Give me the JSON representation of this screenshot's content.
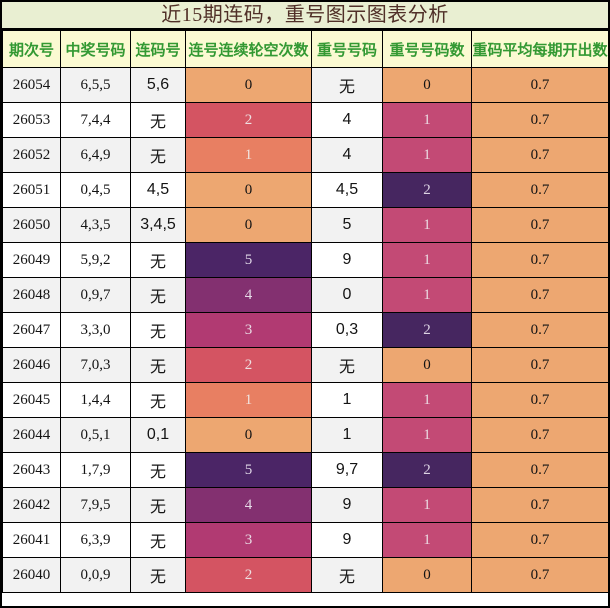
{
  "title": "近15期连码，重号图示图表分析",
  "colors": {
    "frame_border": "#000000",
    "title_bg": "#e9efd2",
    "title_text": "#503028",
    "header_bg": "#fbfad2",
    "header_text": "#339933",
    "row_alt_bg": "#f2f2f2",
    "row_bg": "#ffffff"
  },
  "chart_data": {
    "type": "table",
    "title": "近15期连码，重号图示图表分析",
    "columns": [
      "期次号",
      "中奖号码",
      "连码号",
      "连号连续轮空次数",
      "重号号码",
      "重号号码数",
      "重码平均每期开出数"
    ],
    "palette": {
      "orange": {
        "bg": "#eda771",
        "fg": "#141414"
      },
      "salmon": {
        "bg": "#e87f62",
        "fg": "#f0e4e0"
      },
      "red": {
        "bg": "#d45462",
        "fg": "#eedfe1"
      },
      "magenta": {
        "bg": "#b13a72",
        "fg": "#e9dae4"
      },
      "purple": {
        "bg": "#833070",
        "fg": "#e5dae6"
      },
      "deep-purple": {
        "bg": "#4b2566",
        "fg": "#ded5e6"
      },
      "pink": {
        "bg": "#c34a75",
        "fg": "#ecdce4"
      },
      "dark-purple": {
        "bg": "#462660",
        "fg": "#ddd4e4"
      }
    },
    "rows": [
      {
        "period": "26054",
        "win": "6,5,5",
        "consec": "5,6",
        "skip": "0",
        "skip_color": "orange",
        "repeat": "无",
        "repeat_count": "0",
        "repeat_count_color": "orange",
        "avg": "0.7",
        "avg_color": "orange"
      },
      {
        "period": "26053",
        "win": "7,4,4",
        "consec": "无",
        "skip": "2",
        "skip_color": "red",
        "repeat": "4",
        "repeat_count": "1",
        "repeat_count_color": "pink",
        "avg": "0.7",
        "avg_color": "orange"
      },
      {
        "period": "26052",
        "win": "6,4,9",
        "consec": "无",
        "skip": "1",
        "skip_color": "salmon",
        "repeat": "4",
        "repeat_count": "1",
        "repeat_count_color": "pink",
        "avg": "0.7",
        "avg_color": "orange"
      },
      {
        "period": "26051",
        "win": "0,4,5",
        "consec": "4,5",
        "skip": "0",
        "skip_color": "orange",
        "repeat": "4,5",
        "repeat_count": "2",
        "repeat_count_color": "dark-purple",
        "avg": "0.7",
        "avg_color": "orange"
      },
      {
        "period": "26050",
        "win": "4,3,5",
        "consec": "3,4,5",
        "skip": "0",
        "skip_color": "orange",
        "repeat": "5",
        "repeat_count": "1",
        "repeat_count_color": "pink",
        "avg": "0.7",
        "avg_color": "orange"
      },
      {
        "period": "26049",
        "win": "5,9,2",
        "consec": "无",
        "skip": "5",
        "skip_color": "deep-purple",
        "repeat": "9",
        "repeat_count": "1",
        "repeat_count_color": "pink",
        "avg": "0.7",
        "avg_color": "orange"
      },
      {
        "period": "26048",
        "win": "0,9,7",
        "consec": "无",
        "skip": "4",
        "skip_color": "purple",
        "repeat": "0",
        "repeat_count": "1",
        "repeat_count_color": "pink",
        "avg": "0.7",
        "avg_color": "orange"
      },
      {
        "period": "26047",
        "win": "3,3,0",
        "consec": "无",
        "skip": "3",
        "skip_color": "magenta",
        "repeat": "0,3",
        "repeat_count": "2",
        "repeat_count_color": "dark-purple",
        "avg": "0.7",
        "avg_color": "orange"
      },
      {
        "period": "26046",
        "win": "7,0,3",
        "consec": "无",
        "skip": "2",
        "skip_color": "red",
        "repeat": "无",
        "repeat_count": "0",
        "repeat_count_color": "orange",
        "avg": "0.7",
        "avg_color": "orange"
      },
      {
        "period": "26045",
        "win": "1,4,4",
        "consec": "无",
        "skip": "1",
        "skip_color": "salmon",
        "repeat": "1",
        "repeat_count": "1",
        "repeat_count_color": "pink",
        "avg": "0.7",
        "avg_color": "orange"
      },
      {
        "period": "26044",
        "win": "0,5,1",
        "consec": "0,1",
        "skip": "0",
        "skip_color": "orange",
        "repeat": "1",
        "repeat_count": "1",
        "repeat_count_color": "pink",
        "avg": "0.7",
        "avg_color": "orange"
      },
      {
        "period": "26043",
        "win": "1,7,9",
        "consec": "无",
        "skip": "5",
        "skip_color": "deep-purple",
        "repeat": "9,7",
        "repeat_count": "2",
        "repeat_count_color": "dark-purple",
        "avg": "0.7",
        "avg_color": "orange"
      },
      {
        "period": "26042",
        "win": "7,9,5",
        "consec": "无",
        "skip": "4",
        "skip_color": "purple",
        "repeat": "9",
        "repeat_count": "1",
        "repeat_count_color": "pink",
        "avg": "0.7",
        "avg_color": "orange"
      },
      {
        "period": "26041",
        "win": "6,3,9",
        "consec": "无",
        "skip": "3",
        "skip_color": "magenta",
        "repeat": "9",
        "repeat_count": "1",
        "repeat_count_color": "pink",
        "avg": "0.7",
        "avg_color": "orange"
      },
      {
        "period": "26040",
        "win": "0,0,9",
        "consec": "无",
        "skip": "2",
        "skip_color": "red",
        "repeat": "无",
        "repeat_count": "0",
        "repeat_count_color": "orange",
        "avg": "0.7",
        "avg_color": "orange"
      }
    ]
  }
}
